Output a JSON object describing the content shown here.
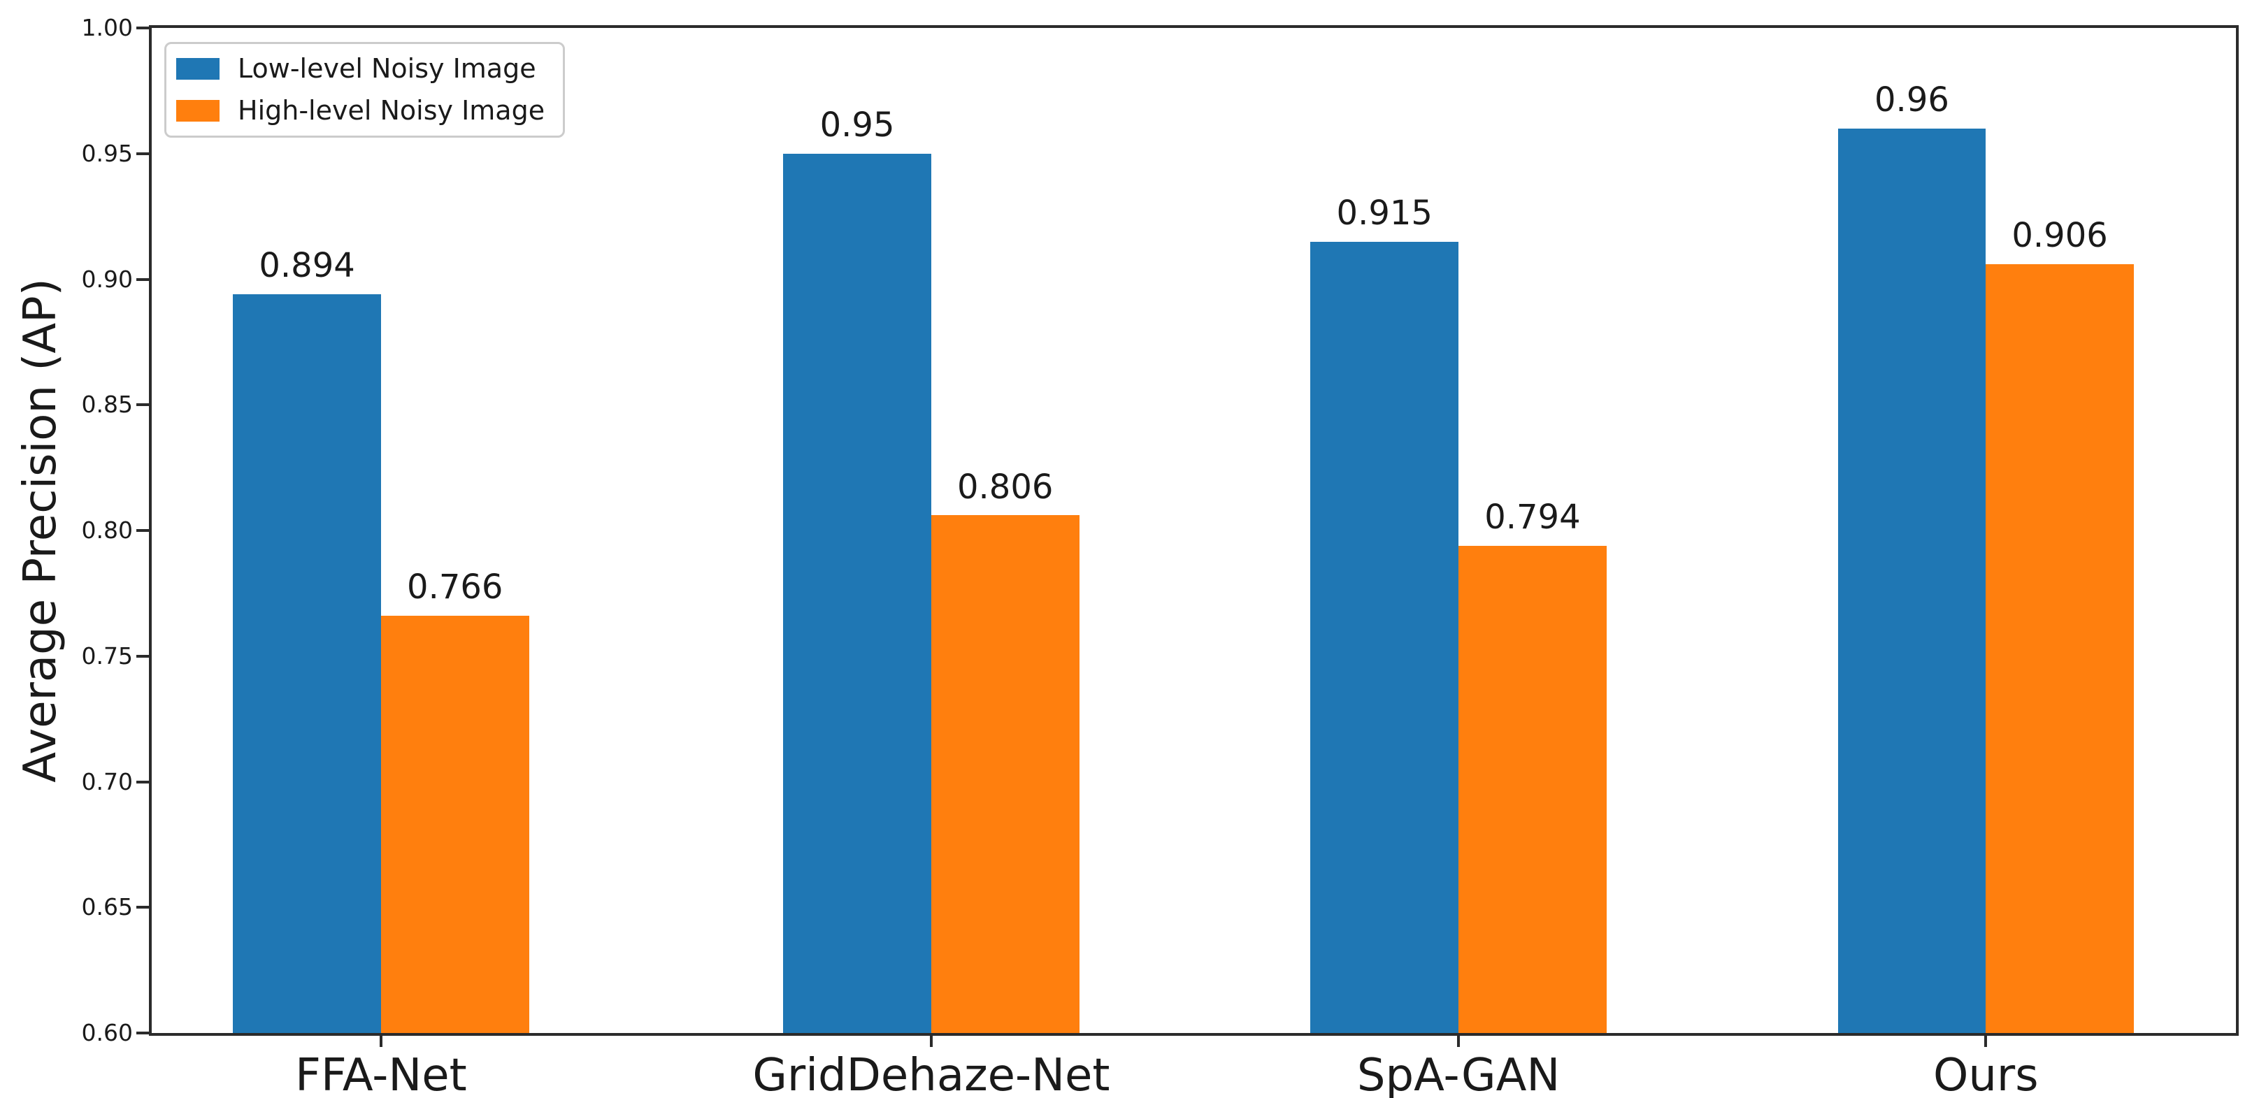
{
  "chart_data": {
    "type": "bar",
    "title": "",
    "xlabel": "",
    "ylabel": "Average Precision (AP)",
    "categories": [
      "FFA-Net",
      "GridDehaze-Net",
      "SpA-GAN",
      "Ours"
    ],
    "series": [
      {
        "name": "Low-level Noisy Image",
        "color": "#1f77b4",
        "values": [
          0.894,
          0.95,
          0.915,
          0.96
        ],
        "labels": [
          "0.894",
          "0.95",
          "0.915",
          "0.96"
        ]
      },
      {
        "name": "High-level Noisy Image",
        "color": "#ff7f0e",
        "values": [
          0.766,
          0.806,
          0.794,
          0.906
        ],
        "labels": [
          "0.766",
          "0.806",
          "0.794",
          "0.906"
        ]
      }
    ],
    "ylim": [
      0.6,
      1.0
    ],
    "yticks": [
      "0.60",
      "0.65",
      "0.70",
      "0.75",
      "0.80",
      "0.85",
      "0.90",
      "0.95",
      "1.00"
    ],
    "grid": false,
    "legend_position": "upper left"
  }
}
